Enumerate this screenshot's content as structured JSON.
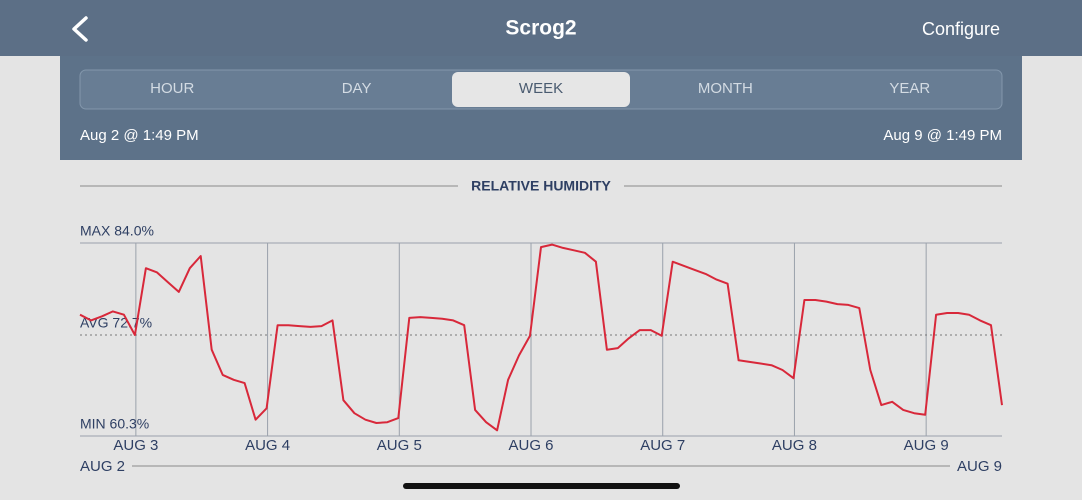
{
  "header": {
    "title": "Scrog2",
    "action": "Configure"
  },
  "tabs": {
    "items": [
      "HOUR",
      "DAY",
      "WEEK",
      "MONTH",
      "YEAR"
    ],
    "selected": 2
  },
  "range": {
    "start": "Aug 2 @ 1:49 PM",
    "end": "Aug 9 @ 1:49 PM"
  },
  "chart_data": {
    "type": "line",
    "title": "RELATIVE HUMIDITY",
    "color": "#d8283a",
    "x": [
      0,
      2,
      4,
      6,
      8,
      10,
      12,
      14,
      16,
      18,
      20,
      22,
      24,
      26,
      28,
      30,
      32,
      34,
      36,
      38,
      40,
      42,
      44,
      46,
      48,
      50,
      52,
      54,
      56,
      58,
      60,
      62,
      64,
      66,
      68,
      70,
      72,
      74,
      76,
      78,
      80,
      82,
      84,
      86,
      88,
      90,
      92,
      94,
      96,
      98,
      100,
      102,
      104,
      106,
      108,
      110,
      112,
      114,
      116,
      118,
      120,
      122,
      124,
      126,
      128,
      130,
      132,
      134,
      136,
      138,
      140,
      142,
      144,
      146,
      148,
      150,
      152,
      154,
      156,
      158,
      160,
      162,
      164,
      166,
      168
    ],
    "values": [
      75.2,
      74.5,
      75.0,
      75.6,
      75.2,
      72.7,
      80.9,
      80.4,
      79.2,
      78.0,
      80.9,
      82.4,
      70.9,
      67.8,
      67.2,
      66.8,
      62.3,
      63.7,
      73.9,
      73.9,
      73.8,
      73.7,
      73.8,
      74.5,
      64.7,
      63.1,
      62.3,
      61.9,
      62.0,
      62.5,
      74.8,
      74.9,
      74.8,
      74.7,
      74.5,
      73.9,
      63.5,
      62.0,
      61.0,
      67.2,
      70.2,
      72.6,
      83.5,
      83.8,
      83.4,
      83.1,
      82.8,
      81.7,
      70.9,
      71.1,
      72.3,
      73.3,
      73.3,
      72.6,
      81.7,
      81.2,
      80.7,
      80.2,
      79.5,
      79.0,
      69.6,
      69.4,
      69.2,
      69.0,
      68.4,
      67.4,
      77.0,
      77.0,
      76.8,
      76.5,
      76.4,
      76.0,
      68.4,
      64.1,
      64.5,
      63.5,
      63.1,
      62.9,
      75.2,
      75.4,
      75.4,
      75.2,
      74.5,
      73.9,
      64.1
    ],
    "xlim": [
      0,
      168
    ],
    "ylim": [
      60.3,
      84.0
    ],
    "xticks": [
      {
        "value": 10.18,
        "label": "AUG 3"
      },
      {
        "value": 34.18,
        "label": "AUG 4"
      },
      {
        "value": 58.18,
        "label": "AUG 5"
      },
      {
        "value": 82.18,
        "label": "AUG 6"
      },
      {
        "value": 106.18,
        "label": "AUG 7"
      },
      {
        "value": 130.18,
        "label": "AUG 8"
      },
      {
        "value": 154.18,
        "label": "AUG 9"
      }
    ],
    "yticks": [
      {
        "value": 84.0,
        "label": "MAX 84.0%"
      },
      {
        "value": 72.7,
        "label": "AVG 72.7%"
      },
      {
        "value": 60.3,
        "label": "MIN 60.3%"
      }
    ],
    "range_labels": [
      "AUG 2",
      "AUG 9"
    ]
  }
}
